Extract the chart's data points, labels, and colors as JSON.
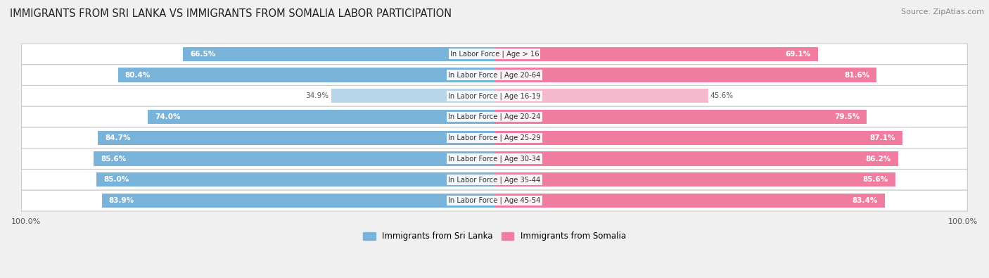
{
  "title": "IMMIGRANTS FROM SRI LANKA VS IMMIGRANTS FROM SOMALIA LABOR PARTICIPATION",
  "source": "Source: ZipAtlas.com",
  "categories": [
    "In Labor Force | Age > 16",
    "In Labor Force | Age 20-64",
    "In Labor Force | Age 16-19",
    "In Labor Force | Age 20-24",
    "In Labor Force | Age 25-29",
    "In Labor Force | Age 30-34",
    "In Labor Force | Age 35-44",
    "In Labor Force | Age 45-54"
  ],
  "sri_lanka_values": [
    66.5,
    80.4,
    34.9,
    74.0,
    84.7,
    85.6,
    85.0,
    83.9
  ],
  "somalia_values": [
    69.1,
    81.6,
    45.6,
    79.5,
    87.1,
    86.2,
    85.6,
    83.4
  ],
  "sri_lanka_color": "#7ab3d9",
  "sri_lanka_color_light": "#b8d5ea",
  "somalia_color": "#f07ca0",
  "somalia_color_light": "#f5b8cc",
  "bar_height": 0.68,
  "background_color": "#f0f0f0",
  "max_val": 100.0,
  "legend_srilanka": "Immigrants from Sri Lanka",
  "legend_somalia": "Immigrants from Somalia"
}
